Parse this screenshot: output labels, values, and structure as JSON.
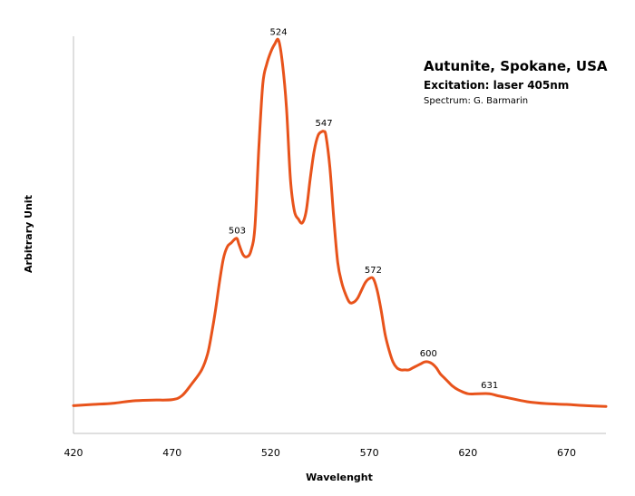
{
  "chart_data": {
    "type": "line",
    "title": "Autunite, Spokane, USA",
    "subtitle": "Excitation: laser 405nm",
    "credit": "Spectrum: G. Barmarin",
    "xlabel": "Wavelenght",
    "ylabel": "Arbitrary Unit",
    "xlim": [
      420,
      690
    ],
    "ylim": [
      0,
      100
    ],
    "xticks": [
      420,
      470,
      520,
      570,
      620,
      670
    ],
    "grid": false,
    "line_color": "#e8531b",
    "peaks": [
      {
        "label": "503",
        "x": 503,
        "y": 49
      },
      {
        "label": "524",
        "x": 524,
        "y": 99
      },
      {
        "label": "547",
        "x": 547,
        "y": 76
      },
      {
        "label": "572",
        "x": 572,
        "y": 39
      },
      {
        "label": "600",
        "x": 600,
        "y": 18
      },
      {
        "label": "631",
        "x": 631,
        "y": 10
      }
    ],
    "series": [
      {
        "x": [
          420,
          430,
          440,
          450,
          460,
          470,
          475,
          480,
          485,
          488,
          490,
          492,
          494,
          496,
          498,
          500,
          502,
          503,
          504,
          506,
          508,
          510,
          512,
          514,
          516,
          518,
          520,
          522,
          524,
          526,
          528,
          530,
          532,
          534,
          536,
          538,
          540,
          542,
          544,
          546,
          547,
          548,
          550,
          552,
          554,
          556,
          558,
          560,
          562,
          564,
          566,
          568,
          570,
          572,
          574,
          576,
          578,
          580,
          582,
          584,
          586,
          588,
          590,
          592,
          594,
          596,
          598,
          600,
          602,
          604,
          606,
          608,
          610,
          612,
          615,
          620,
          625,
          631,
          635,
          640,
          650,
          660,
          670,
          680,
          690
        ],
        "y": [
          7,
          7.3,
          7.6,
          8.2,
          8.4,
          8.5,
          9.5,
          12.5,
          16,
          20,
          25,
          31,
          38,
          44,
          47,
          48,
          49,
          49,
          47.5,
          45,
          44.5,
          46,
          52,
          72,
          88,
          93,
          96,
          98,
          99,
          93,
          82,
          64,
          56,
          54,
          53,
          56,
          64,
          71,
          75,
          76,
          76,
          75,
          67,
          54,
          43,
          38,
          35,
          33,
          33,
          34,
          36,
          38,
          39,
          39,
          36,
          31,
          25,
          21,
          18,
          16.5,
          16,
          16,
          16,
          16.5,
          17,
          17.5,
          18,
          18,
          17.5,
          16.5,
          15,
          14,
          13,
          12,
          11,
          10,
          10,
          10,
          9.5,
          9,
          8,
          7.5,
          7.3,
          7,
          6.8
        ]
      }
    ]
  }
}
